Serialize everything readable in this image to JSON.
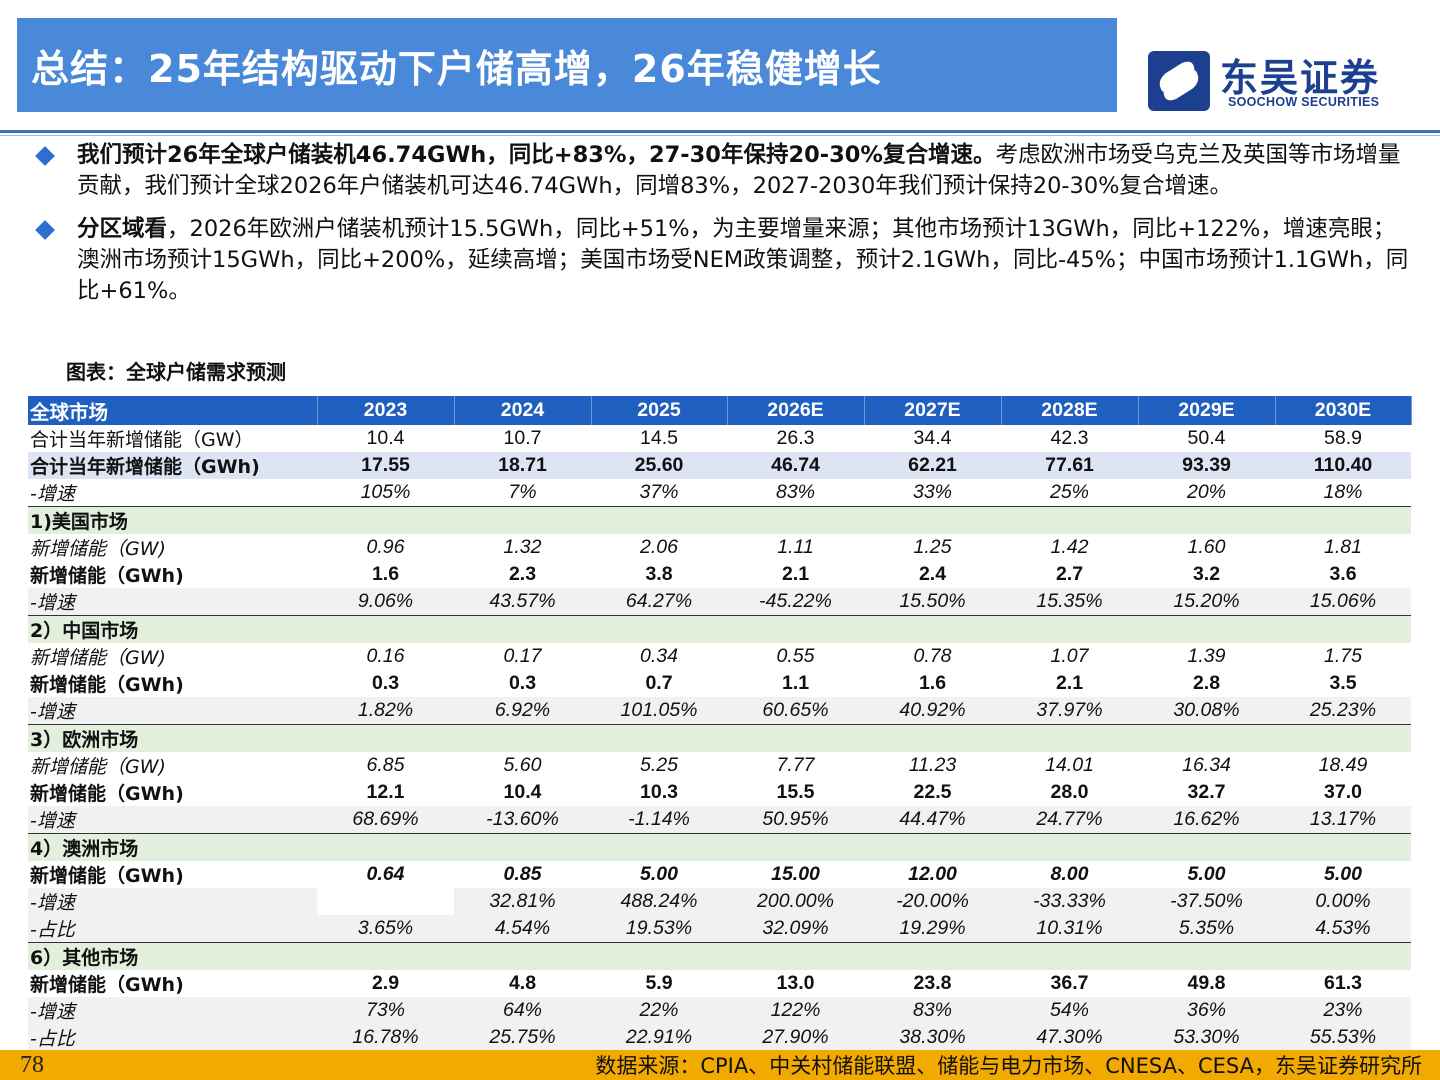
{
  "header": {
    "title": "总结：25年结构驱动下户储高增，26年稳健增长",
    "logo_cn": "东吴证券",
    "logo_en": "SOOCHOW SECURITIES"
  },
  "bullets": [
    {
      "bold": "我们预计26年全球户储装机46.74GWh，同比+83%，27-30年保持20-30%复合增速。",
      "text": "考虑欧洲市场受乌克兰及英国等市场增量贡献，我们预计全球2026年户储装机可达46.74GWh，同增83%，2027-2030年我们预计保持20-30%复合增速。"
    },
    {
      "bold": "分区域看",
      "text": "，2026年欧洲户储装机预计15.5GWh，同比+51%，为主要增量来源；其他市场预计13GWh，同比+122%，增速亮眼；澳洲市场预计15GWh，同比+200%，延续高增；美国市场受NEM政策调整，预计2.1GWh，同比-45%；中国市场预计1.1GWh，同比+61%。"
    }
  ],
  "chart": {
    "title": "图表：全球户储需求预测",
    "header": [
      "全球市场",
      "2023",
      "2024",
      "2025",
      "2026E",
      "2027E",
      "2028E",
      "2029E",
      "2030E"
    ],
    "rows": {
      "g_gw": [
        "合计当年新增储能（GW）",
        "10.4",
        "10.7",
        "14.5",
        "26.3",
        "34.4",
        "42.3",
        "50.4",
        "58.9"
      ],
      "g_gwh": [
        "合计当年新增储能（GWh)",
        "17.55",
        "18.71",
        "25.60",
        "46.74",
        "62.21",
        "77.61",
        "93.39",
        "110.40"
      ],
      "g_gr": [
        "-增速",
        "105%",
        "7%",
        "37%",
        "83%",
        "33%",
        "25%",
        "20%",
        "18%"
      ],
      "us_h": "1)美国市场",
      "us_gw": [
        "新增储能（GW)",
        "0.96",
        "1.32",
        "2.06",
        "1.11",
        "1.25",
        "1.42",
        "1.60",
        "1.81"
      ],
      "us_gwh": [
        "新增储能（GWh)",
        "1.6",
        "2.3",
        "3.8",
        "2.1",
        "2.4",
        "2.7",
        "3.2",
        "3.6"
      ],
      "us_gr": [
        "-增速",
        "9.06%",
        "43.57%",
        "64.27%",
        "-45.22%",
        "15.50%",
        "15.35%",
        "15.20%",
        "15.06%"
      ],
      "cn_h": "2）中国市场",
      "cn_gw": [
        "新增储能（GW)",
        "0.16",
        "0.17",
        "0.34",
        "0.55",
        "0.78",
        "1.07",
        "1.39",
        "1.75"
      ],
      "cn_gwh": [
        "新增储能（GWh)",
        "0.3",
        "0.3",
        "0.7",
        "1.1",
        "1.6",
        "2.1",
        "2.8",
        "3.5"
      ],
      "cn_gr": [
        "-增速",
        "1.82%",
        "6.92%",
        "101.05%",
        "60.65%",
        "40.92%",
        "37.97%",
        "30.08%",
        "25.23%"
      ],
      "eu_h": "3）欧洲市场",
      "eu_gw": [
        "新增储能（GW)",
        "6.85",
        "5.60",
        "5.25",
        "7.77",
        "11.23",
        "14.01",
        "16.34",
        "18.49"
      ],
      "eu_gwh": [
        "新增储能（GWh)",
        "12.1",
        "10.4",
        "10.3",
        "15.5",
        "22.5",
        "28.0",
        "32.7",
        "37.0"
      ],
      "eu_gr": [
        "-增速",
        "68.69%",
        "-13.60%",
        "-1.14%",
        "50.95%",
        "44.47%",
        "24.77%",
        "16.62%",
        "13.17%"
      ],
      "au_h": "4）澳洲市场",
      "au_gwh": [
        "新增储能（GWh)",
        "0.64",
        "0.85",
        "5.00",
        "15.00",
        "12.00",
        "8.00",
        "5.00",
        "5.00"
      ],
      "au_gr": [
        "-增速",
        "",
        "32.81%",
        "488.24%",
        "200.00%",
        "-20.00%",
        "-33.33%",
        "-37.50%",
        "0.00%"
      ],
      "au_sh": [
        "-占比",
        "3.65%",
        "4.54%",
        "19.53%",
        "32.09%",
        "19.29%",
        "10.31%",
        "5.35%",
        "4.53%"
      ],
      "ot_h": "6）其他市场",
      "ot_gwh": [
        "新增储能（GWh)",
        "2.9",
        "4.8",
        "5.9",
        "13.0",
        "23.8",
        "36.7",
        "49.8",
        "61.3"
      ],
      "ot_gr": [
        "-增速",
        "73%",
        "64%",
        "22%",
        "122%",
        "83%",
        "54%",
        "36%",
        "23%"
      ],
      "ot_sh": [
        "-占比",
        "16.78%",
        "25.75%",
        "22.91%",
        "27.90%",
        "38.30%",
        "47.30%",
        "53.30%",
        "55.53%"
      ]
    }
  },
  "footer": {
    "page": "78",
    "source": "数据来源：CPIA、中关村储能联盟、储能与电力市场、CNESA、CESA，东吴证券研究所"
  },
  "colors": {
    "title_bar": "#4a88d9",
    "table_header": "#1f5fbf",
    "section_row": "#e3efdd",
    "footer_bar": "#f2a900"
  }
}
